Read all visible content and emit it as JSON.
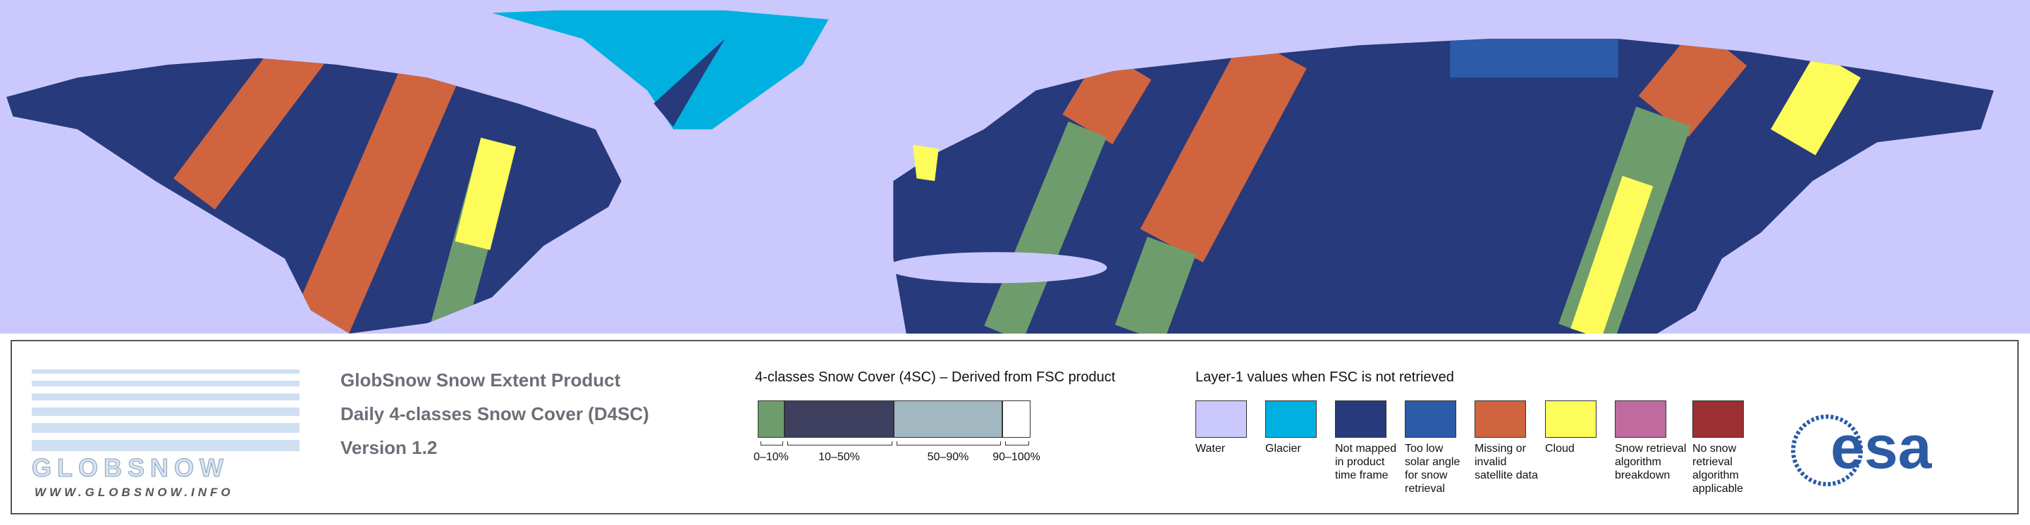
{
  "logo": {
    "name": "GLOBSNOW",
    "url": "WWW.GLOBSNOW.INFO"
  },
  "product": {
    "lines": [
      "GlobSnow Snow Extent Product",
      "Daily 4-classes Snow Cover (D4SC)",
      "Version 1.2"
    ]
  },
  "snow_cover_legend": {
    "title": "4-classes Snow Cover (4SC) – Derived from FSC product",
    "classes": [
      {
        "label": "0–10%",
        "color": "#6f9c6c"
      },
      {
        "label": "10–50%",
        "color": "#3f3f5f"
      },
      {
        "label": "50–90%",
        "color": "#a2b8c0"
      },
      {
        "label": "90–100%",
        "color": "#ffffff"
      }
    ]
  },
  "layer1_legend": {
    "title": "Layer-1 values when FSC is not retrieved",
    "items": [
      {
        "label": "Water",
        "color": "#cbc8fd"
      },
      {
        "label": "Glacier",
        "color": "#00b0e0"
      },
      {
        "label": "Not mapped in product time frame",
        "color": "#263a7c"
      },
      {
        "label": "Too low solar angle for snow retrieval",
        "color": "#2c5ba8"
      },
      {
        "label": "Missing or invalid satellite data",
        "color": "#d0643f"
      },
      {
        "label": "Cloud",
        "color": "#fdfc5a"
      },
      {
        "label": "Snow retrieval algorithm breakdown",
        "color": "#c06aa0"
      },
      {
        "label": "No snow retrieval algorithm applicable",
        "color": "#9c2f31"
      }
    ]
  },
  "esa_logo": "esa"
}
